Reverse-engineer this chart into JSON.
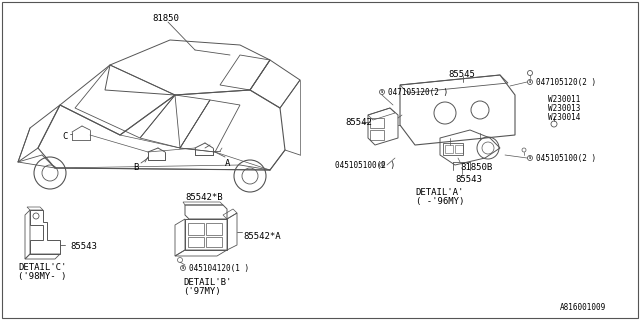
{
  "bg_color": "#ffffff",
  "line_color": "#555555",
  "text_color": "#000000",
  "part_number_81850": "81850",
  "part_number_85542": "85542",
  "part_number_85543": "85543",
  "part_number_85545": "85545",
  "part_number_81850B": "81850B",
  "screw_047105120": "047105120(2 )",
  "screw_045105100": "045105100(2 )",
  "screw_045104120": "045104120(1 )",
  "label_W230011": "W230011",
  "label_W230013": "W230013",
  "label_W230014": "W230014",
  "label_85542A": "85542*A",
  "label_85542B": "85542*B",
  "detail_A": "DETAIL'A'",
  "detail_A_sub": "( -'96MY)",
  "detail_B": "DETAIL'B'",
  "detail_B_sub": "('97MY)",
  "detail_C": "DETAIL'C'",
  "detail_C_sub": "('98MY- )",
  "watermark": "A816001009",
  "label_A": "A",
  "label_B": "B",
  "label_C": "C",
  "font_size_small": 5.5,
  "font_size_medium": 6.5
}
